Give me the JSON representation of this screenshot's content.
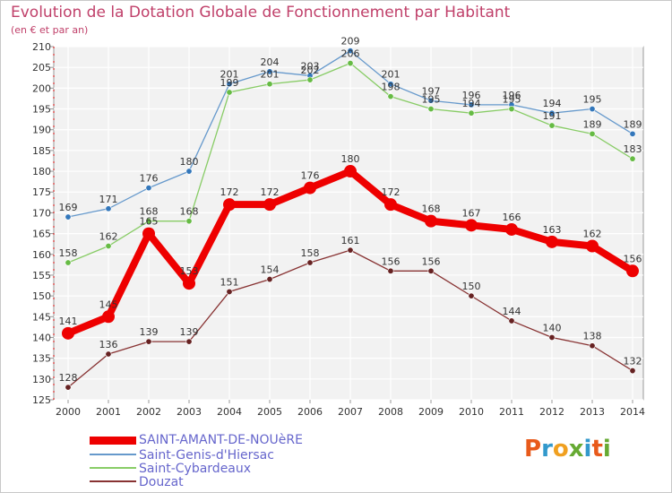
{
  "chart_data": {
    "type": "line",
    "title": "Evolution de la Dotation Globale de Fonctionnement par Habitant",
    "subtitle": "(en € et par an)",
    "x": [
      "2000",
      "2001",
      "2002",
      "2003",
      "2004",
      "2005",
      "2006",
      "2007",
      "2008",
      "2009",
      "2010",
      "2011",
      "2012",
      "2013",
      "2014"
    ],
    "ylim": [
      125,
      210
    ],
    "yticks": [
      125,
      130,
      135,
      140,
      145,
      150,
      155,
      160,
      165,
      170,
      175,
      180,
      185,
      190,
      195,
      200,
      205,
      210
    ],
    "xlabel": "",
    "ylabel": "",
    "grid": true,
    "legend_position": "bottom-left",
    "series": [
      {
        "name": "SAINT-AMANT-DE-NOUèRE",
        "values": [
          141,
          145,
          165,
          153,
          172,
          172,
          176,
          180,
          172,
          168,
          167,
          166,
          163,
          162,
          156
        ],
        "labels": [
          "141",
          "145",
          "165",
          "153",
          "172",
          "172",
          "176",
          "180",
          "172",
          "168",
          "167",
          "166",
          "163",
          "162",
          "156"
        ],
        "color": "#ee0000",
        "highlight": true
      },
      {
        "name": "Saint-Genis-d'Hiersac",
        "values": [
          169,
          171,
          176,
          180,
          201,
          204,
          203,
          209,
          201,
          197,
          196,
          196,
          194,
          195,
          189
        ],
        "labels": [
          "169",
          "171",
          "176",
          "180",
          "201",
          "204",
          "203",
          "209",
          "201",
          "197",
          "196",
          "196",
          "194",
          "195",
          "189"
        ],
        "color": "#6699cc",
        "marker_color": "#3377bb",
        "highlight": false
      },
      {
        "name": "Saint-Cybardeaux",
        "values": [
          158,
          162,
          168,
          168,
          199,
          201,
          202,
          206,
          198,
          195,
          194,
          195,
          191,
          189,
          183
        ],
        "labels": [
          "158",
          "162",
          "168",
          "168",
          "199",
          "201",
          "202",
          "206",
          "198",
          "195",
          "194",
          "195",
          "191",
          "189",
          "183"
        ],
        "color": "#88cc66",
        "marker_color": "#66bb44",
        "highlight": false
      },
      {
        "name": "Douzat",
        "values": [
          128,
          136,
          139,
          139,
          151,
          154,
          158,
          161,
          156,
          156,
          150,
          144,
          140,
          138,
          132
        ],
        "labels": [
          "128",
          "136",
          "139",
          "139",
          "151",
          "154",
          "158",
          "161",
          "156",
          "156",
          "150",
          "144",
          "140",
          "138",
          "132"
        ],
        "color": "#883333",
        "marker_color": "#662222",
        "highlight": false
      }
    ]
  },
  "logo": {
    "letters": [
      "P",
      "r",
      "o",
      "x",
      "i",
      "t",
      "i"
    ],
    "colors": [
      "#e85a1b",
      "#3399cc",
      "#f0a020",
      "#66aa33",
      "#3399cc",
      "#e85a1b",
      "#66aa33"
    ]
  }
}
